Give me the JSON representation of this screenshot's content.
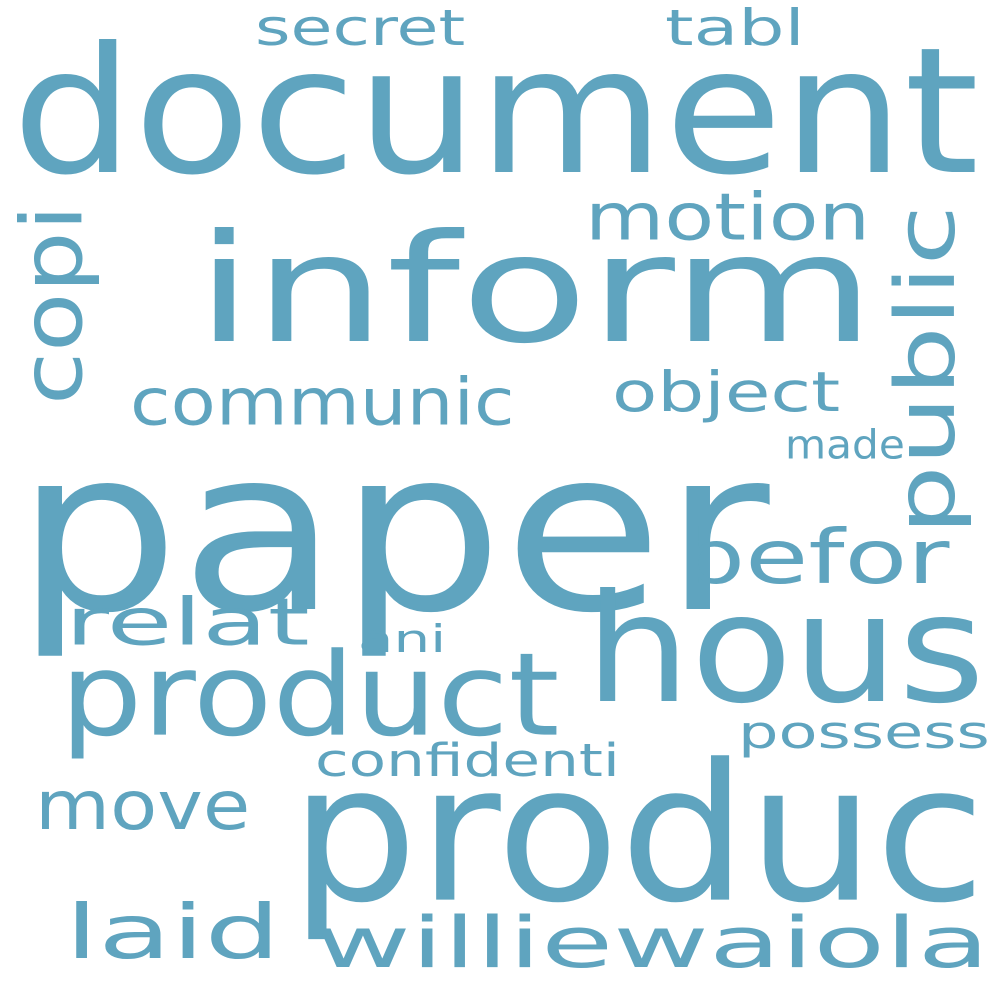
{
  "color": "#5fa4bf",
  "words": [
    {
      "key": "paper",
      "text": "paper"
    },
    {
      "key": "document",
      "text": "document"
    },
    {
      "key": "inform",
      "text": "inform"
    },
    {
      "key": "produc",
      "text": "produc"
    },
    {
      "key": "hous",
      "text": "hous"
    },
    {
      "key": "product",
      "text": "product"
    },
    {
      "key": "williewaiola",
      "text": "williewaiola"
    },
    {
      "key": "public",
      "text": "public"
    },
    {
      "key": "laid",
      "text": "laid"
    },
    {
      "key": "befor",
      "text": "befor"
    },
    {
      "key": "communic",
      "text": "communic"
    },
    {
      "key": "move",
      "text": "move"
    },
    {
      "key": "motion",
      "text": "motion"
    },
    {
      "key": "relat",
      "text": "relat"
    },
    {
      "key": "copi",
      "text": "copi"
    },
    {
      "key": "object",
      "text": "object"
    },
    {
      "key": "secret",
      "text": "secret"
    },
    {
      "key": "tabl",
      "text": "tabl"
    },
    {
      "key": "possess",
      "text": "possess"
    },
    {
      "key": "confidenti",
      "text": "confidenti"
    },
    {
      "key": "made",
      "text": "made"
    },
    {
      "key": "ani",
      "text": "ani"
    }
  ]
}
